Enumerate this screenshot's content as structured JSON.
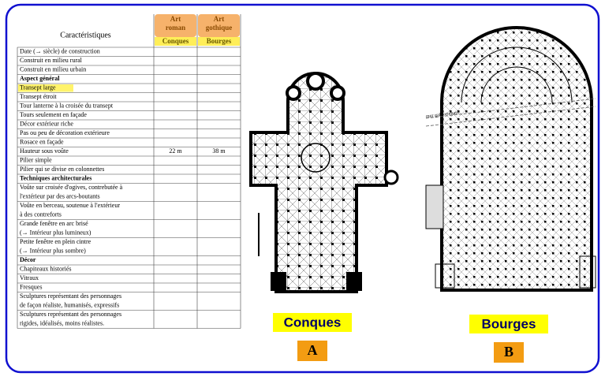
{
  "table": {
    "header": {
      "characteristics": "Caractéristiques",
      "columns": [
        {
          "style": [
            "Art",
            "roman"
          ],
          "site": "Conques"
        },
        {
          "style": [
            "Art",
            "gothique"
          ],
          "site": "Bourges"
        }
      ]
    },
    "rows": [
      {
        "label": [
          "Date (→ siècle) de construction"
        ]
      },
      {
        "label": [
          "Construit en milieu rural"
        ]
      },
      {
        "label": [
          "Construit en milieu urbain"
        ]
      },
      {
        "label": [
          "Aspect général"
        ],
        "section": true
      },
      {
        "label": [
          "Transept large"
        ],
        "highlight": true
      },
      {
        "label": [
          "Transept étroit"
        ]
      },
      {
        "label": [
          "Tour lanterne à la croisée du transept"
        ]
      },
      {
        "label": [
          "Tours seulement en façade"
        ]
      },
      {
        "label": [
          "Décor extérieur riche"
        ]
      },
      {
        "label": [
          "Pas ou peu de décoration extérieure"
        ]
      },
      {
        "label": [
          "Rosace en façade"
        ]
      },
      {
        "label": [
          "Hauteur sous voûte"
        ],
        "cells": [
          "22 m",
          "38 m"
        ]
      },
      {
        "label": [
          "Pilier simple"
        ]
      },
      {
        "label": [
          "Pilier qui se divise en colonnettes"
        ]
      },
      {
        "label": [
          "Techniques architecturales"
        ],
        "section": true
      },
      {
        "label": [
          "Voûte sur croisée d'ogives, contrebutée à",
          "l'extérieur par des arcs-boutants"
        ]
      },
      {
        "label": [
          "Voûte en berceau, soutenue à l'extérieur",
          "à des contreforts"
        ]
      },
      {
        "label": [
          "Grande fenêtre en arc brisé",
          "(→ Intérieur plus lumineux)"
        ]
      },
      {
        "label": [
          "Petite fenêtre en plein cintre",
          "(→ Intérieur plus sombre)"
        ]
      },
      {
        "label": [
          "Décor"
        ],
        "section": true
      },
      {
        "label": [
          "Chapiteaux historiés"
        ]
      },
      {
        "label": [
          "Vitraux"
        ]
      },
      {
        "label": [
          "Fresques"
        ]
      },
      {
        "label": [
          "Sculptures représentant des personnages",
          "de façon réaliste, humanisés, expressifs"
        ]
      },
      {
        "label": [
          "Sculptures représentant des personnages",
          "rigides, idéalisés, moins réalistes."
        ]
      }
    ]
  },
  "plans": [
    {
      "name": "Conques",
      "letter": "A"
    },
    {
      "name": "Bourges",
      "letter": "B",
      "note": "mur gallo-romain"
    }
  ]
}
